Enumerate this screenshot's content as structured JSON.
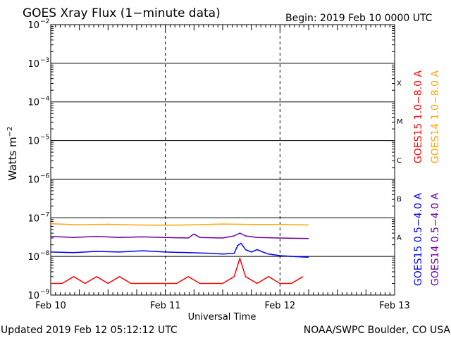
{
  "chart_data": {
    "type": "line",
    "title": "GOES Xray Flux (1−minute data)",
    "begin_label": "Begin:  2019 Feb 10 0000 UTC",
    "ylabel": "Watts m",
    "ylabel_exp": "−2",
    "xlabel": "Universal Time",
    "yscale": "log",
    "ylim": [
      1e-09,
      0.01
    ],
    "xlim": [
      0,
      3
    ],
    "y_ticks": [
      {
        "mant": "10",
        "exp": "−2"
      },
      {
        "mant": "10",
        "exp": "−3"
      },
      {
        "mant": "10",
        "exp": "−4"
      },
      {
        "mant": "10",
        "exp": "−5"
      },
      {
        "mant": "10",
        "exp": "−6"
      },
      {
        "mant": "10",
        "exp": "−7"
      },
      {
        "mant": "10",
        "exp": "−8"
      },
      {
        "mant": "10",
        "exp": "−9"
      }
    ],
    "x_ticks": [
      "Feb 10",
      "Feb 11",
      "Feb 12",
      "Feb 13"
    ],
    "flare_classes": [
      "X",
      "M",
      "C",
      "B",
      "A"
    ],
    "grid": true,
    "legend": [
      {
        "name": "GOES15 1.0−8.0 A",
        "color": "#ff0000"
      },
      {
        "name": "GOES14 1.0−8.0 A",
        "color": "#ffa500"
      },
      {
        "name": "GOES15 0.5−4.0 A",
        "color": "#0000ff"
      },
      {
        "name": "GOES14 0.5−4.0 A",
        "color": "#7000a0"
      }
    ],
    "series": [
      {
        "name": "GOES15 1.0−8.0 A",
        "color": "#ff0000",
        "x": [
          0,
          0.1,
          0.2,
          0.3,
          0.4,
          0.5,
          0.6,
          0.7,
          0.8,
          0.9,
          1.0,
          1.1,
          1.2,
          1.3,
          1.4,
          1.5,
          1.6,
          1.65,
          1.7,
          1.8,
          1.9,
          2.0,
          2.1,
          2.2
        ],
        "y": [
          2e-09,
          2e-09,
          3e-09,
          2e-09,
          3e-09,
          2e-09,
          3e-09,
          2e-09,
          2e-09,
          2e-09,
          2e-09,
          2e-09,
          3e-09,
          2e-09,
          2e-09,
          2e-09,
          3e-09,
          9e-09,
          3e-09,
          2e-09,
          3e-09,
          2e-09,
          2e-09,
          3e-09
        ]
      },
      {
        "name": "GOES14 1.0−8.0 A",
        "color": "#ffa500",
        "x": [
          0,
          0.25,
          0.5,
          0.75,
          1.0,
          1.25,
          1.5,
          1.75,
          2.0,
          2.25
        ],
        "y": [
          7e-08,
          6.6e-08,
          6.8e-08,
          6.5e-08,
          6.4e-08,
          6.6e-08,
          6.9e-08,
          6.7e-08,
          6.7e-08,
          6.5e-08
        ]
      },
      {
        "name": "GOES15 0.5−4.0 A",
        "color": "#0000ff",
        "x": [
          0,
          0.2,
          0.4,
          0.6,
          0.8,
          1.0,
          1.2,
          1.4,
          1.5,
          1.6,
          1.63,
          1.66,
          1.7,
          1.75,
          1.8,
          1.85,
          1.9,
          2.0,
          2.1,
          2.25
        ],
        "y": [
          1.3e-08,
          1.25e-08,
          1.35e-08,
          1.3e-08,
          1.4e-08,
          1.3e-08,
          1.25e-08,
          1.2e-08,
          1.15e-08,
          1.2e-08,
          1.9e-08,
          2.2e-08,
          1.5e-08,
          1.3e-08,
          1.5e-08,
          1.3e-08,
          1.15e-08,
          1.05e-08,
          1e-08,
          9.5e-09
        ]
      },
      {
        "name": "GOES14 0.5−4.0 A",
        "color": "#7000a0",
        "x": [
          0,
          0.2,
          0.4,
          0.6,
          0.8,
          1.0,
          1.2,
          1.25,
          1.3,
          1.5,
          1.6,
          1.65,
          1.7,
          1.8,
          2.0,
          2.25
        ],
        "y": [
          3.3e-08,
          3.1e-08,
          3.3e-08,
          3.1e-08,
          3.2e-08,
          3.1e-08,
          3e-08,
          3.8e-08,
          3.1e-08,
          3e-08,
          3.4e-08,
          4e-08,
          3.4e-08,
          3.1e-08,
          3e-08,
          2.9e-08
        ]
      }
    ],
    "updated": "Updated 2019 Feb 12 05:12:12 UTC",
    "credit": "NOAA/SWPC Boulder, CO USA"
  }
}
